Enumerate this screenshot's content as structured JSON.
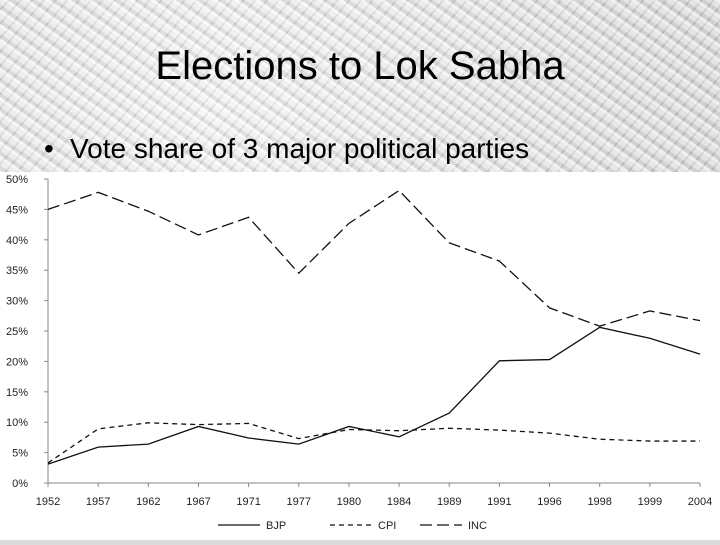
{
  "slide": {
    "title": "Elections to Lok Sabha",
    "bullet": "Vote share of 3 major political parties",
    "bullet_symbol": "•"
  },
  "chart_data": {
    "type": "line",
    "title": "",
    "xlabel": "",
    "ylabel": "",
    "ylim": [
      0,
      50
    ],
    "y_ticks": [
      "0%",
      "5%",
      "10%",
      "15%",
      "20%",
      "25%",
      "30%",
      "35%",
      "40%",
      "45%",
      "50%"
    ],
    "x": [
      "1952",
      "1957",
      "1962",
      "1967",
      "1971",
      "1977",
      "1980",
      "1984",
      "1989",
      "1991",
      "1996",
      "1998",
      "1999",
      "2004"
    ],
    "grid": false,
    "legend_position": "bottom",
    "series": [
      {
        "name": "BJP",
        "style": "solid",
        "values": [
          3.1,
          5.9,
          6.4,
          9.3,
          7.4,
          6.4,
          9.3,
          7.6,
          11.5,
          20.1,
          20.3,
          25.6,
          23.8,
          21.2
        ]
      },
      {
        "name": "CPI",
        "style": "dashed",
        "values": [
          3.3,
          8.9,
          9.9,
          9.6,
          9.8,
          7.3,
          8.8,
          8.6,
          9.0,
          8.7,
          8.2,
          7.2,
          6.9,
          6.9
        ]
      },
      {
        "name": "INC",
        "style": "longdash",
        "values": [
          45.0,
          47.8,
          44.7,
          40.8,
          43.7,
          34.5,
          42.7,
          48.1,
          39.5,
          36.5,
          28.8,
          25.8,
          28.3,
          26.7
        ]
      }
    ]
  }
}
